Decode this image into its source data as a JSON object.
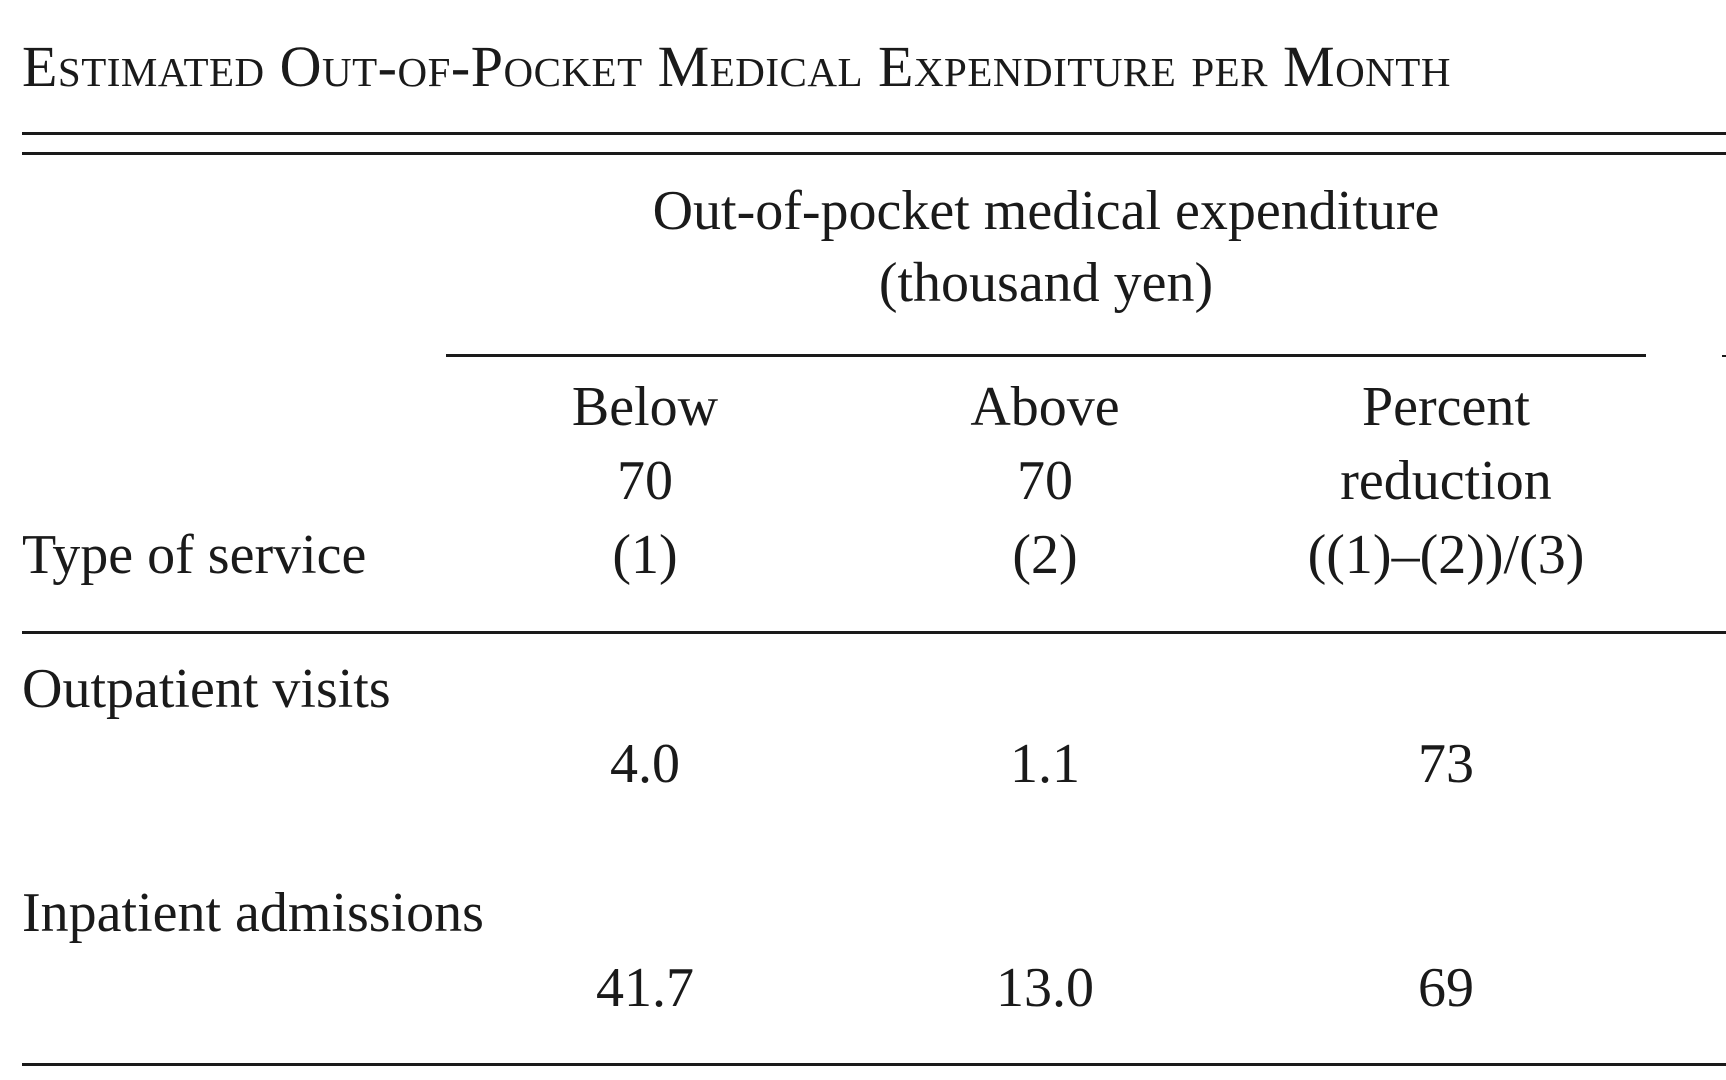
{
  "table": {
    "title": "Estimated Out-of-Pocket Medical Expenditure per Month",
    "spanner": {
      "line1": "Out-of-pocket medical expenditure",
      "line2": "(thousand yen)"
    },
    "stub_header": "Type of service",
    "columns": [
      {
        "line1": "Below",
        "line2": "70",
        "line3": "(1)"
      },
      {
        "line1": "Above",
        "line2": "70",
        "line3": "(2)"
      },
      {
        "line1": "Percent",
        "line2": "reduction",
        "line3": "((1)–(2))/(3)"
      }
    ],
    "rows": [
      {
        "label": "Outpatient visits",
        "values": [
          "4.0",
          "1.1",
          "73"
        ]
      },
      {
        "label": "Inpatient admissions",
        "values": [
          "41.7",
          "13.0",
          "69"
        ]
      }
    ]
  }
}
